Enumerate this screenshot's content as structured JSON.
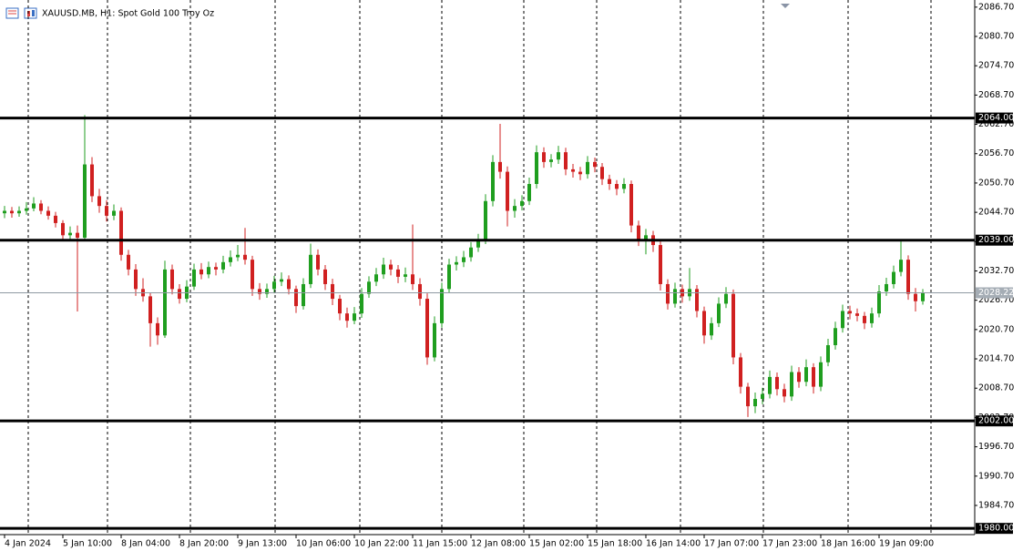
{
  "chart_data": {
    "type": "candlestick",
    "title": "XAUUSD.MB, H1:  Spot Gold 100 Troy Oz",
    "up_color": "#1f9e1f",
    "down_color": "#d02020",
    "grid": true,
    "ylim": [
      1979.1,
      2087.6
    ],
    "yticks": [
      {
        "value": 2086.7,
        "label": "2086.70"
      },
      {
        "value": 2080.7,
        "label": "2080.70"
      },
      {
        "value": 2074.7,
        "label": "2074.70"
      },
      {
        "value": 2068.7,
        "label": "2068.70"
      },
      {
        "value": 2062.7,
        "label": "2062.70"
      },
      {
        "value": 2056.7,
        "label": "2056.70"
      },
      {
        "value": 2050.7,
        "label": "2050.70"
      },
      {
        "value": 2044.7,
        "label": "2044.70"
      },
      {
        "value": 2038.7,
        "label": "2038.70"
      },
      {
        "value": 2032.7,
        "label": "2032.70"
      },
      {
        "value": 2026.7,
        "label": "2026.70"
      },
      {
        "value": 2020.7,
        "label": "2020.70"
      },
      {
        "value": 2014.7,
        "label": "2014.70"
      },
      {
        "value": 2008.7,
        "label": "2008.70"
      },
      {
        "value": 2002.7,
        "label": "2002.70"
      },
      {
        "value": 1996.7,
        "label": "1996.70"
      },
      {
        "value": 1990.7,
        "label": "1990.70"
      },
      {
        "value": 1984.7,
        "label": "1984.70"
      }
    ],
    "xlim": [
      -0.625,
      133.125
    ],
    "xticks": [
      {
        "value": 0,
        "label": "4 Jan 2024"
      },
      {
        "value": 8,
        "label": "5 Jan 10:00"
      },
      {
        "value": 16,
        "label": "8 Jan 04:00"
      },
      {
        "value": 24,
        "label": "8 Jan 20:00"
      },
      {
        "value": 32,
        "label": "9 Jan 13:00"
      },
      {
        "value": 40,
        "label": "10 Jan 06:00"
      },
      {
        "value": 48,
        "label": "10 Jan 22:00"
      },
      {
        "value": 56,
        "label": "11 Jan 15:00"
      },
      {
        "value": 64,
        "label": "12 Jan 08:00"
      },
      {
        "value": 72,
        "label": "15 Jan 02:00"
      },
      {
        "value": 80,
        "label": "15 Jan 18:00"
      },
      {
        "value": 88,
        "label": "16 Jan 14:00"
      },
      {
        "value": 96,
        "label": "17 Jan 07:00"
      },
      {
        "value": 104,
        "label": "17 Jan 23:00"
      },
      {
        "value": 112,
        "label": "18 Jan 16:00"
      },
      {
        "value": 120,
        "label": "19 Jan 09:00"
      }
    ],
    "levels": [
      {
        "value": 2064,
        "label": "2064.00"
      },
      {
        "value": 2039,
        "label": "2039.00"
      },
      {
        "value": 2002,
        "label": "2002.00"
      },
      {
        "value": 1980,
        "label": "1980.00"
      }
    ],
    "last": {
      "value": 2028.22,
      "label": "2028.22"
    },
    "ohlc": [
      [
        2044.5,
        2046,
        2043.5,
        2045
      ],
      [
        2045,
        2045.8,
        2043.6,
        2044.5
      ],
      [
        2044.5,
        2045.9,
        2043.8,
        2045
      ],
      [
        2045,
        2046.8,
        2044.2,
        2045.5
      ],
      [
        2045.5,
        2047.8,
        2044.9,
        2046.5
      ],
      [
        2046.5,
        2047.2,
        2044.3,
        2045
      ],
      [
        2045,
        2045.9,
        2043.2,
        2044
      ],
      [
        2044,
        2044.8,
        2041.6,
        2042.5
      ],
      [
        2042.5,
        2043.1,
        2038.9,
        2040
      ],
      [
        2040,
        2041.8,
        2039.1,
        2040.5
      ],
      [
        2040.5,
        2042,
        2024.4,
        2039.5
      ],
      [
        2039.5,
        2064.6,
        2039,
        2054.5
      ],
      [
        2054.5,
        2056,
        2046.8,
        2048
      ],
      [
        2048,
        2049.5,
        2044.6,
        2046
      ],
      [
        2046,
        2047.2,
        2042.8,
        2044
      ],
      [
        2044,
        2046.3,
        2043.1,
        2045
      ],
      [
        2045,
        2045.7,
        2034.8,
        2036
      ],
      [
        2036,
        2037,
        2031.8,
        2033
      ],
      [
        2033,
        2034.1,
        2027.6,
        2029
      ],
      [
        2029,
        2031.2,
        2026.4,
        2027.5
      ],
      [
        2027.5,
        2028.3,
        2017.2,
        2022
      ],
      [
        2022,
        2023.2,
        2017.6,
        2019.5
      ],
      [
        2019.5,
        2034.8,
        2019,
        2033
      ],
      [
        2033,
        2034,
        2027.9,
        2029
      ],
      [
        2029,
        2030,
        2026,
        2027
      ],
      [
        2027,
        2030.8,
        2026.3,
        2029.5
      ],
      [
        2029.5,
        2034.2,
        2028.8,
        2033
      ],
      [
        2033,
        2034.3,
        2031,
        2032
      ],
      [
        2032,
        2034.6,
        2031.2,
        2033.5
      ],
      [
        2033.5,
        2034.4,
        2031.8,
        2033
      ],
      [
        2033,
        2035.8,
        2032.2,
        2034.5
      ],
      [
        2034.5,
        2036.9,
        2033.6,
        2035.5
      ],
      [
        2035.5,
        2038,
        2034.7,
        2036
      ],
      [
        2036,
        2041.5,
        2034,
        2035
      ],
      [
        2035,
        2035.8,
        2027.6,
        2029
      ],
      [
        2029,
        2030.2,
        2026.8,
        2028
      ],
      [
        2028,
        2030.1,
        2027.2,
        2029
      ],
      [
        2029,
        2031.7,
        2028.1,
        2030.5
      ],
      [
        2030.5,
        2032.4,
        2029.6,
        2031
      ],
      [
        2031,
        2031.8,
        2027.9,
        2029
      ],
      [
        2029,
        2029.7,
        2024.1,
        2025.5
      ],
      [
        2025.5,
        2031.2,
        2024.8,
        2030
      ],
      [
        2030,
        2038.3,
        2029.2,
        2036
      ],
      [
        2036,
        2037.1,
        2031.8,
        2033
      ],
      [
        2033,
        2033.9,
        2028.8,
        2030
      ],
      [
        2030,
        2031.1,
        2025.7,
        2027
      ],
      [
        2027,
        2027.8,
        2022.6,
        2024
      ],
      [
        2024,
        2025.2,
        2021.1,
        2022.5
      ],
      [
        2022.5,
        2025.3,
        2021.8,
        2024
      ],
      [
        2024,
        2029.2,
        2023.1,
        2028
      ],
      [
        2028,
        2031.6,
        2027.2,
        2030.5
      ],
      [
        2030.5,
        2033.3,
        2029.6,
        2032
      ],
      [
        2032,
        2035.4,
        2031.1,
        2034
      ],
      [
        2034,
        2035,
        2031.8,
        2033
      ],
      [
        2033,
        2033.9,
        2030.2,
        2031.5
      ],
      [
        2031.5,
        2033.4,
        2030.4,
        2032
      ],
      [
        2032,
        2042.2,
        2028.8,
        2030
      ],
      [
        2030,
        2031.2,
        2025.6,
        2027
      ],
      [
        2027,
        2028.1,
        2013.5,
        2015
      ],
      [
        2015,
        2023.4,
        2014.2,
        2022
      ],
      [
        2022,
        2030.3,
        2021.1,
        2029
      ],
      [
        2029,
        2035.2,
        2028.3,
        2034
      ],
      [
        2034,
        2035.7,
        2032.8,
        2034.5
      ],
      [
        2034.5,
        2036.8,
        2033.5,
        2035.5
      ],
      [
        2035.5,
        2038.6,
        2034.6,
        2037.5
      ],
      [
        2037.5,
        2040.3,
        2036.6,
        2039
      ],
      [
        2039,
        2048.4,
        2038.2,
        2047
      ],
      [
        2047,
        2056.4,
        2045.9,
        2055
      ],
      [
        2055,
        2062.8,
        2051.6,
        2053
      ],
      [
        2053,
        2054.1,
        2041.8,
        2045
      ],
      [
        2045,
        2047.4,
        2043.6,
        2046
      ],
      [
        2046,
        2048.2,
        2045.1,
        2047
      ],
      [
        2047,
        2051.8,
        2046.2,
        2050.5
      ],
      [
        2050.5,
        2058.4,
        2049.6,
        2057
      ],
      [
        2057,
        2058,
        2053.8,
        2055
      ],
      [
        2055,
        2056.6,
        2053.9,
        2055.5
      ],
      [
        2055.5,
        2058.3,
        2054.6,
        2057
      ],
      [
        2057,
        2057.9,
        2052.3,
        2053.5
      ],
      [
        2053.5,
        2054.6,
        2051.8,
        2053
      ],
      [
        2053,
        2054,
        2051.3,
        2052.5
      ],
      [
        2052.5,
        2056.2,
        2051.6,
        2055
      ],
      [
        2055,
        2055.9,
        2052.9,
        2054
      ],
      [
        2054,
        2054.8,
        2050.3,
        2051.5
      ],
      [
        2051.5,
        2052.4,
        2049.3,
        2050.5
      ],
      [
        2050.5,
        2051.3,
        2048.2,
        2049.5
      ],
      [
        2049.5,
        2051.7,
        2048.6,
        2050.5
      ],
      [
        2050.5,
        2051.2,
        2040.6,
        2042
      ],
      [
        2042,
        2043,
        2037.8,
        2039
      ],
      [
        2039,
        2041.3,
        2036.1,
        2040
      ],
      [
        2040,
        2040.9,
        2036.6,
        2038
      ],
      [
        2038,
        2038.9,
        2028.7,
        2030
      ],
      [
        2030,
        2031,
        2024.8,
        2026
      ],
      [
        2026,
        2030.3,
        2025.2,
        2029
      ],
      [
        2029,
        2029.9,
        2026.2,
        2027.5
      ],
      [
        2027.5,
        2033.3,
        2026.6,
        2029
      ],
      [
        2029,
        2029.8,
        2023.2,
        2024.5
      ],
      [
        2024.5,
        2025.4,
        2017.8,
        2019.5
      ],
      [
        2019.5,
        2023.2,
        2018.6,
        2022
      ],
      [
        2022,
        2027.3,
        2021.2,
        2026
      ],
      [
        2026,
        2029.4,
        2025.1,
        2028
      ],
      [
        2028,
        2028.9,
        2013.6,
        2015
      ],
      [
        2015,
        2015.9,
        2007.6,
        2009
      ],
      [
        2009,
        2009.8,
        2002.8,
        2005
      ],
      [
        2005,
        2007.8,
        2003.6,
        2006.5
      ],
      [
        2006.5,
        2008.8,
        2005.4,
        2007.5
      ],
      [
        2007.5,
        2012.3,
        2006.6,
        2011
      ],
      [
        2011,
        2011.9,
        2007.2,
        2008.5
      ],
      [
        2008.5,
        2009.6,
        2005.8,
        2007
      ],
      [
        2007,
        2013.3,
        2006.1,
        2012
      ],
      [
        2012,
        2013,
        2008.8,
        2010
      ],
      [
        2010,
        2014.6,
        2009.1,
        2013
      ],
      [
        2013,
        2013.8,
        2007.6,
        2009
      ],
      [
        2009,
        2015.2,
        2008.1,
        2014
      ],
      [
        2014,
        2018.8,
        2013.2,
        2017.5
      ],
      [
        2017.5,
        2022.3,
        2016.6,
        2021
      ],
      [
        2021,
        2025.8,
        2020.1,
        2024.5
      ],
      [
        2024.5,
        2025.6,
        2022.8,
        2024
      ],
      [
        2024,
        2025,
        2022.4,
        2023.5
      ],
      [
        2023.5,
        2024.3,
        2020.8,
        2022
      ],
      [
        2022,
        2025.2,
        2021.1,
        2024
      ],
      [
        2024,
        2029.8,
        2023.2,
        2028.5
      ],
      [
        2028.5,
        2031.3,
        2027.6,
        2030
      ],
      [
        2030,
        2033.8,
        2029.1,
        2032.5
      ],
      [
        2032.5,
        2039.2,
        2031.6,
        2035
      ],
      [
        2035,
        2035.9,
        2026.8,
        2028
      ],
      [
        2028,
        2029.2,
        2024.4,
        2026.5
      ],
      [
        2026.5,
        2029,
        2025.8,
        2028.22
      ]
    ]
  }
}
